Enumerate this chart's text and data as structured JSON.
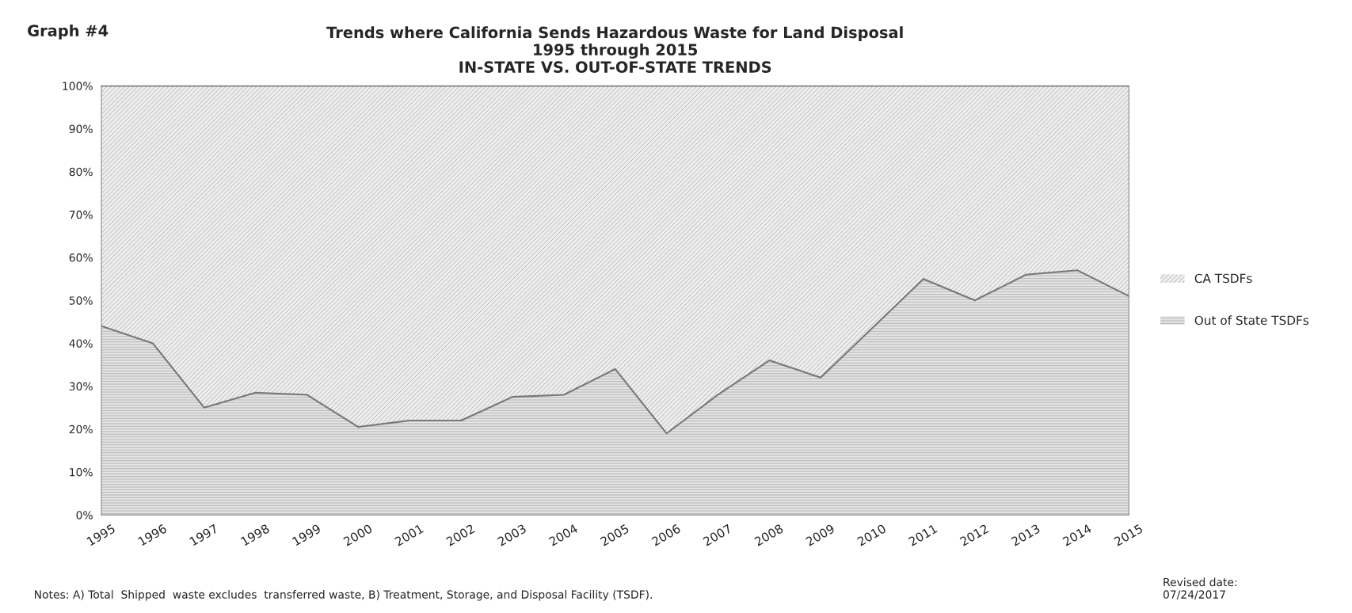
{
  "chart_data": {
    "type": "area",
    "stacked": true,
    "title": "Trends where California Sends Hazardous Waste for Land Disposal\n1995 through 2015\nIN-STATE VS. OUT-OF-STATE TRENDS",
    "categories": [
      "1995",
      "1996",
      "1997",
      "1998",
      "1999",
      "2000",
      "2001",
      "2002",
      "2003",
      "2004",
      "2005",
      "2006",
      "2007",
      "2008",
      "2009",
      "2010",
      "2011",
      "2012",
      "2013",
      "2014",
      "2015"
    ],
    "series": [
      {
        "name": "Out of State TSDFs",
        "color": "#e4e4e4",
        "values": [
          44,
          40,
          25,
          28.5,
          28,
          20.5,
          22,
          22,
          27.5,
          28,
          34,
          19,
          28,
          36,
          32,
          43.5,
          55,
          50,
          56,
          57,
          51
        ]
      },
      {
        "name": "CA TSDFs",
        "color": "#eeeeee",
        "values": [
          56,
          60,
          75,
          71.5,
          72,
          79.5,
          78,
          78,
          72.5,
          72,
          66,
          81,
          72,
          64,
          68,
          56.5,
          45,
          50,
          44,
          43,
          49
        ]
      }
    ],
    "ylim": [
      0,
      100
    ],
    "yticks": [
      {
        "value": 0,
        "label": "0%"
      },
      {
        "value": 10,
        "label": "10%"
      },
      {
        "value": 20,
        "label": "20%"
      },
      {
        "value": 30,
        "label": "30%"
      },
      {
        "value": 40,
        "label": "40%"
      },
      {
        "value": 50,
        "label": "50%"
      },
      {
        "value": 60,
        "label": "60%"
      },
      {
        "value": 70,
        "label": "70%"
      },
      {
        "value": 80,
        "label": "80%"
      },
      {
        "value": 90,
        "label": "90%"
      },
      {
        "value": 100,
        "label": "100%"
      }
    ],
    "legend": "right",
    "annotations": [
      "Graph #4",
      "Notes: A) Total  Shipped  waste excludes  transferred waste, B) Treatment, Storage, and Disposal Facility (TSDF).",
      "Revised date:\n07/24/2017"
    ]
  }
}
